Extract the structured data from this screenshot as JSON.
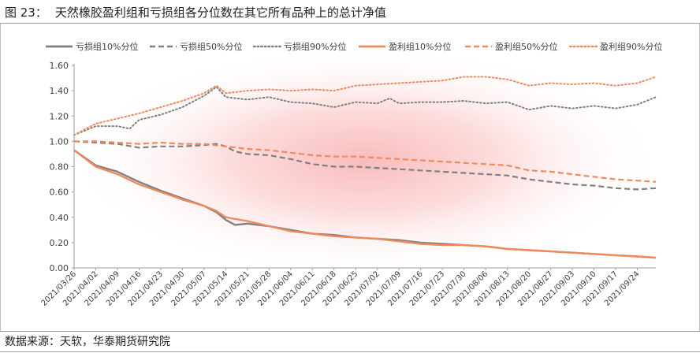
{
  "header": {
    "figure_number": "图 23：",
    "title": "天然橡胶盈利组和亏损组各分位数在其它所有品种上的总计净值"
  },
  "footer": {
    "source": "数据来源：天软，华泰期货研究院"
  },
  "colors": {
    "loss": "#808080",
    "profit": "#f08a5d",
    "background_glow": "#fbd3d3"
  },
  "chart_data": {
    "type": "line",
    "title": "",
    "xlabel": "",
    "ylabel": "",
    "ylim": [
      0,
      1.6
    ],
    "yticks": [
      "0.00",
      "0.20",
      "0.40",
      "0.60",
      "0.80",
      "1.00",
      "1.20",
      "1.40",
      "1.60"
    ],
    "grid": false,
    "legend_position": "top",
    "x_start": "2021/03/26",
    "x_end": "2021/09/30",
    "xticks": [
      "2021/03/26",
      "2021/04/02",
      "2021/04/09",
      "2021/04/16",
      "2021/04/23",
      "2021/04/30",
      "2021/05/07",
      "2021/05/14",
      "2021/05/21",
      "2021/05/28",
      "2021/06/04",
      "2021/06/11",
      "2021/06/18",
      "2021/06/25",
      "2021/07/02",
      "2021/07/09",
      "2021/07/16",
      "2021/07/23",
      "2021/07/30",
      "2021/08/06",
      "2021/08/13",
      "2021/08/20",
      "2021/08/27",
      "2021/09/03",
      "2021/09/10",
      "2021/09/17",
      "2021/09/24"
    ],
    "series": [
      {
        "name": "亏损组10%分位",
        "group": "loss",
        "style": "solid",
        "points": [
          [
            "2021/03/26",
            0.93
          ],
          [
            "2021/04/02",
            0.81
          ],
          [
            "2021/04/09",
            0.76
          ],
          [
            "2021/04/16",
            0.68
          ],
          [
            "2021/04/23",
            0.61
          ],
          [
            "2021/04/30",
            0.55
          ],
          [
            "2021/05/07",
            0.49
          ],
          [
            "2021/05/11",
            0.44
          ],
          [
            "2021/05/14",
            0.38
          ],
          [
            "2021/05/17",
            0.34
          ],
          [
            "2021/05/21",
            0.35
          ],
          [
            "2021/05/28",
            0.33
          ],
          [
            "2021/06/04",
            0.3
          ],
          [
            "2021/06/11",
            0.27
          ],
          [
            "2021/06/18",
            0.26
          ],
          [
            "2021/06/25",
            0.24
          ],
          [
            "2021/07/02",
            0.23
          ],
          [
            "2021/07/09",
            0.22
          ],
          [
            "2021/07/16",
            0.2
          ],
          [
            "2021/07/23",
            0.19
          ],
          [
            "2021/07/30",
            0.18
          ],
          [
            "2021/08/06",
            0.17
          ],
          [
            "2021/08/13",
            0.15
          ],
          [
            "2021/08/20",
            0.14
          ],
          [
            "2021/08/27",
            0.13
          ],
          [
            "2021/09/03",
            0.12
          ],
          [
            "2021/09/10",
            0.11
          ],
          [
            "2021/09/17",
            0.1
          ],
          [
            "2021/09/24",
            0.09
          ],
          [
            "2021/09/30",
            0.08
          ]
        ]
      },
      {
        "name": "亏损组50%分位",
        "group": "loss",
        "style": "dashed",
        "points": [
          [
            "2021/03/26",
            1.0
          ],
          [
            "2021/04/02",
            0.99
          ],
          [
            "2021/04/09",
            0.98
          ],
          [
            "2021/04/16",
            0.95
          ],
          [
            "2021/04/23",
            0.96
          ],
          [
            "2021/04/30",
            0.96
          ],
          [
            "2021/05/07",
            0.97
          ],
          [
            "2021/05/11",
            0.98
          ],
          [
            "2021/05/14",
            0.96
          ],
          [
            "2021/05/17",
            0.92
          ],
          [
            "2021/05/21",
            0.9
          ],
          [
            "2021/05/28",
            0.89
          ],
          [
            "2021/06/04",
            0.86
          ],
          [
            "2021/06/11",
            0.82
          ],
          [
            "2021/06/18",
            0.8
          ],
          [
            "2021/06/25",
            0.8
          ],
          [
            "2021/07/02",
            0.79
          ],
          [
            "2021/07/09",
            0.78
          ],
          [
            "2021/07/16",
            0.77
          ],
          [
            "2021/07/23",
            0.76
          ],
          [
            "2021/07/30",
            0.75
          ],
          [
            "2021/08/06",
            0.74
          ],
          [
            "2021/08/13",
            0.73
          ],
          [
            "2021/08/20",
            0.7
          ],
          [
            "2021/08/27",
            0.68
          ],
          [
            "2021/09/03",
            0.66
          ],
          [
            "2021/09/10",
            0.65
          ],
          [
            "2021/09/17",
            0.63
          ],
          [
            "2021/09/24",
            0.62
          ],
          [
            "2021/09/30",
            0.63
          ]
        ]
      },
      {
        "name": "亏损组90%分位",
        "group": "loss",
        "style": "dotted",
        "points": [
          [
            "2021/03/26",
            1.05
          ],
          [
            "2021/04/02",
            1.12
          ],
          [
            "2021/04/09",
            1.12
          ],
          [
            "2021/04/13",
            1.1
          ],
          [
            "2021/04/16",
            1.17
          ],
          [
            "2021/04/23",
            1.21
          ],
          [
            "2021/04/30",
            1.27
          ],
          [
            "2021/05/07",
            1.36
          ],
          [
            "2021/05/11",
            1.43
          ],
          [
            "2021/05/14",
            1.35
          ],
          [
            "2021/05/21",
            1.33
          ],
          [
            "2021/05/28",
            1.35
          ],
          [
            "2021/06/04",
            1.31
          ],
          [
            "2021/06/11",
            1.3
          ],
          [
            "2021/06/18",
            1.27
          ],
          [
            "2021/06/25",
            1.31
          ],
          [
            "2021/07/02",
            1.3
          ],
          [
            "2021/07/06",
            1.34
          ],
          [
            "2021/07/09",
            1.3
          ],
          [
            "2021/07/16",
            1.31
          ],
          [
            "2021/07/23",
            1.31
          ],
          [
            "2021/07/30",
            1.32
          ],
          [
            "2021/08/06",
            1.3
          ],
          [
            "2021/08/13",
            1.31
          ],
          [
            "2021/08/20",
            1.25
          ],
          [
            "2021/08/27",
            1.28
          ],
          [
            "2021/09/03",
            1.26
          ],
          [
            "2021/09/10",
            1.28
          ],
          [
            "2021/09/17",
            1.26
          ],
          [
            "2021/09/24",
            1.29
          ],
          [
            "2021/09/30",
            1.35
          ]
        ]
      },
      {
        "name": "盈利组10%分位",
        "group": "profit",
        "style": "solid",
        "points": [
          [
            "2021/03/26",
            0.93
          ],
          [
            "2021/04/02",
            0.8
          ],
          [
            "2021/04/09",
            0.74
          ],
          [
            "2021/04/16",
            0.66
          ],
          [
            "2021/04/23",
            0.6
          ],
          [
            "2021/04/30",
            0.54
          ],
          [
            "2021/05/07",
            0.49
          ],
          [
            "2021/05/11",
            0.45
          ],
          [
            "2021/05/14",
            0.4
          ],
          [
            "2021/05/21",
            0.37
          ],
          [
            "2021/05/28",
            0.33
          ],
          [
            "2021/06/04",
            0.29
          ],
          [
            "2021/06/11",
            0.27
          ],
          [
            "2021/06/18",
            0.25
          ],
          [
            "2021/06/25",
            0.24
          ],
          [
            "2021/07/02",
            0.23
          ],
          [
            "2021/07/09",
            0.21
          ],
          [
            "2021/07/16",
            0.19
          ],
          [
            "2021/07/23",
            0.18
          ],
          [
            "2021/07/30",
            0.18
          ],
          [
            "2021/08/06",
            0.17
          ],
          [
            "2021/08/13",
            0.15
          ],
          [
            "2021/08/20",
            0.14
          ],
          [
            "2021/08/27",
            0.13
          ],
          [
            "2021/09/03",
            0.12
          ],
          [
            "2021/09/10",
            0.11
          ],
          [
            "2021/09/17",
            0.1
          ],
          [
            "2021/09/24",
            0.09
          ],
          [
            "2021/09/30",
            0.08
          ]
        ]
      },
      {
        "name": "盈利组50%分位",
        "group": "profit",
        "style": "dashed",
        "points": [
          [
            "2021/03/26",
            1.0
          ],
          [
            "2021/04/02",
            1.0
          ],
          [
            "2021/04/09",
            0.99
          ],
          [
            "2021/04/16",
            0.98
          ],
          [
            "2021/04/23",
            0.99
          ],
          [
            "2021/04/30",
            0.98
          ],
          [
            "2021/05/07",
            0.98
          ],
          [
            "2021/05/14",
            0.96
          ],
          [
            "2021/05/21",
            0.94
          ],
          [
            "2021/05/28",
            0.93
          ],
          [
            "2021/06/04",
            0.91
          ],
          [
            "2021/06/11",
            0.89
          ],
          [
            "2021/06/18",
            0.88
          ],
          [
            "2021/06/25",
            0.88
          ],
          [
            "2021/07/02",
            0.87
          ],
          [
            "2021/07/09",
            0.86
          ],
          [
            "2021/07/16",
            0.85
          ],
          [
            "2021/07/23",
            0.84
          ],
          [
            "2021/07/30",
            0.83
          ],
          [
            "2021/08/06",
            0.82
          ],
          [
            "2021/08/13",
            0.81
          ],
          [
            "2021/08/20",
            0.77
          ],
          [
            "2021/08/27",
            0.76
          ],
          [
            "2021/09/03",
            0.74
          ],
          [
            "2021/09/10",
            0.72
          ],
          [
            "2021/09/17",
            0.7
          ],
          [
            "2021/09/24",
            0.69
          ],
          [
            "2021/09/30",
            0.68
          ]
        ]
      },
      {
        "name": "盈利组90%分位",
        "group": "profit",
        "style": "dotted",
        "points": [
          [
            "2021/03/26",
            1.05
          ],
          [
            "2021/04/02",
            1.14
          ],
          [
            "2021/04/09",
            1.18
          ],
          [
            "2021/04/16",
            1.22
          ],
          [
            "2021/04/23",
            1.27
          ],
          [
            "2021/04/30",
            1.32
          ],
          [
            "2021/05/07",
            1.38
          ],
          [
            "2021/05/11",
            1.44
          ],
          [
            "2021/05/14",
            1.38
          ],
          [
            "2021/05/21",
            1.4
          ],
          [
            "2021/05/28",
            1.41
          ],
          [
            "2021/06/04",
            1.4
          ],
          [
            "2021/06/11",
            1.41
          ],
          [
            "2021/06/18",
            1.4
          ],
          [
            "2021/06/25",
            1.44
          ],
          [
            "2021/07/02",
            1.45
          ],
          [
            "2021/07/09",
            1.46
          ],
          [
            "2021/07/16",
            1.47
          ],
          [
            "2021/07/23",
            1.48
          ],
          [
            "2021/07/30",
            1.51
          ],
          [
            "2021/08/06",
            1.51
          ],
          [
            "2021/08/13",
            1.49
          ],
          [
            "2021/08/20",
            1.44
          ],
          [
            "2021/08/27",
            1.46
          ],
          [
            "2021/09/03",
            1.45
          ],
          [
            "2021/09/10",
            1.46
          ],
          [
            "2021/09/17",
            1.44
          ],
          [
            "2021/09/24",
            1.46
          ],
          [
            "2021/09/30",
            1.51
          ]
        ]
      }
    ]
  }
}
